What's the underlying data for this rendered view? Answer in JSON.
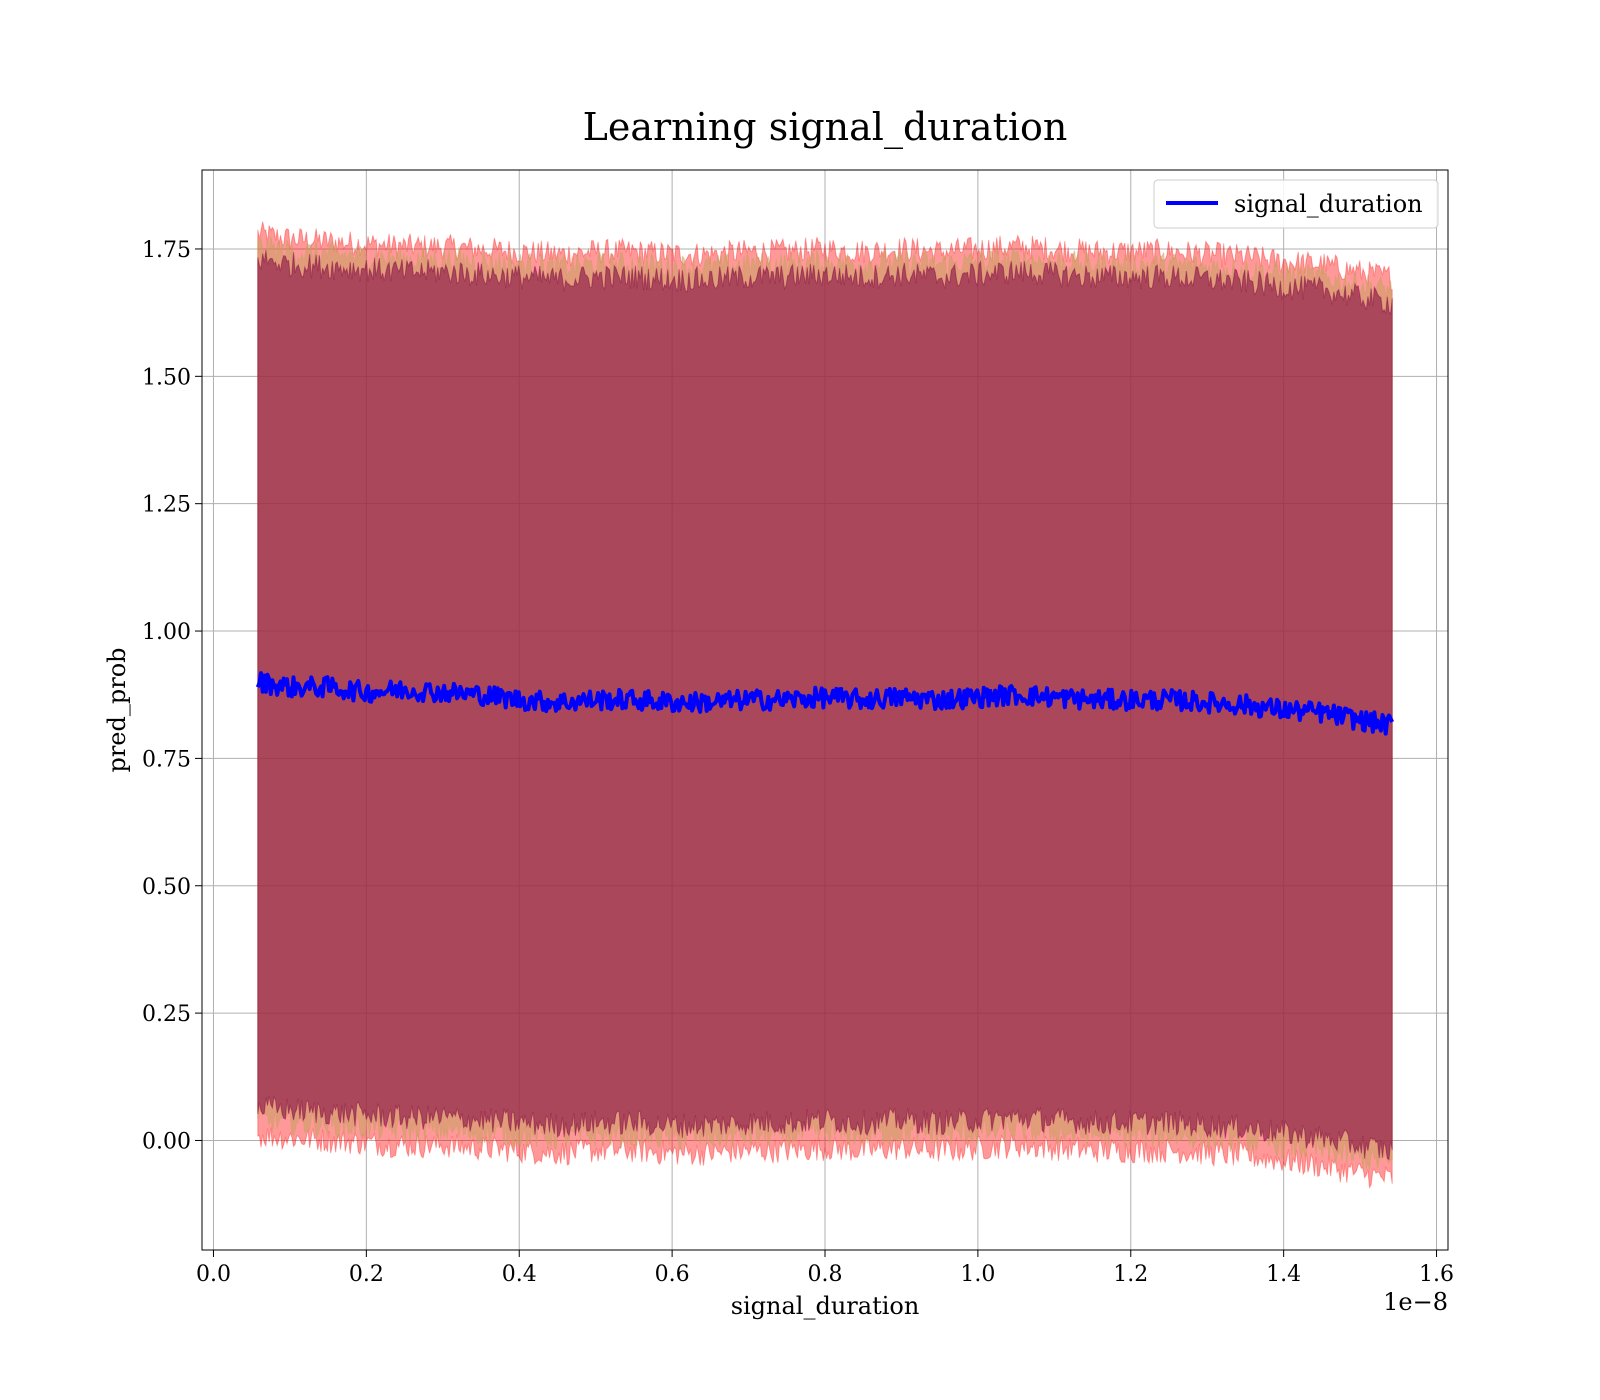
{
  "chart_data": {
    "type": "line",
    "title": "Learning signal_duration",
    "xlabel": "signal_duration",
    "ylabel": "pred_prob",
    "x_offset_text": "1e−8",
    "xlim": [
      -0.015,
      1.615
    ],
    "ylim": [
      -0.215,
      1.905
    ],
    "x_ticks": [
      0.0,
      0.2,
      0.4,
      0.6,
      0.8,
      1.0,
      1.2,
      1.4,
      1.6
    ],
    "x_tick_labels": [
      "0.0",
      "0.2",
      "0.4",
      "0.6",
      "0.8",
      "1.0",
      "1.2",
      "1.4",
      "1.6"
    ],
    "y_ticks": [
      0.0,
      0.25,
      0.5,
      0.75,
      1.0,
      1.25,
      1.5,
      1.75
    ],
    "y_tick_labels": [
      "0.00",
      "0.25",
      "0.50",
      "0.75",
      "1.00",
      "1.25",
      "1.50",
      "1.75"
    ],
    "grid": true,
    "legend": {
      "placement": "top-right",
      "entries": [
        "signal_duration"
      ]
    },
    "x_range": [
      0.058,
      1.542
    ],
    "series": [
      {
        "name": "signal_duration",
        "color": "#0000ff",
        "x": [
          0.06,
          0.1,
          0.15,
          0.2,
          0.25,
          0.3,
          0.35,
          0.4,
          0.45,
          0.5,
          0.55,
          0.6,
          0.65,
          0.7,
          0.75,
          0.8,
          0.85,
          0.9,
          0.95,
          1.0,
          1.05,
          1.1,
          1.15,
          1.2,
          1.25,
          1.3,
          1.35,
          1.4,
          1.45,
          1.5,
          1.54
        ],
        "y": [
          0.9,
          0.89,
          0.89,
          0.88,
          0.885,
          0.88,
          0.875,
          0.865,
          0.86,
          0.865,
          0.865,
          0.86,
          0.86,
          0.865,
          0.865,
          0.87,
          0.865,
          0.87,
          0.865,
          0.87,
          0.875,
          0.87,
          0.865,
          0.865,
          0.865,
          0.86,
          0.855,
          0.845,
          0.84,
          0.825,
          0.815
        ]
      }
    ],
    "bands": [
      {
        "color": "#ff0000",
        "opacity": 0.4,
        "upper": [
          1.78,
          1.77,
          1.765,
          1.76,
          1.755,
          1.755,
          1.75,
          1.745,
          1.74,
          1.745,
          1.745,
          1.74,
          1.74,
          1.745,
          1.745,
          1.75,
          1.745,
          1.75,
          1.745,
          1.75,
          1.755,
          1.75,
          1.745,
          1.745,
          1.745,
          1.74,
          1.735,
          1.725,
          1.72,
          1.705,
          1.695
        ],
        "lower": [
          0.01,
          0.005,
          0.0,
          -0.005,
          -0.01,
          -0.01,
          -0.015,
          -0.02,
          -0.025,
          -0.02,
          -0.02,
          -0.025,
          -0.025,
          -0.02,
          -0.02,
          -0.015,
          -0.02,
          -0.015,
          -0.02,
          -0.015,
          -0.01,
          -0.015,
          -0.02,
          -0.02,
          -0.02,
          -0.025,
          -0.03,
          -0.04,
          -0.05,
          -0.065,
          -0.075
        ]
      },
      {
        "color": "#c8a060",
        "opacity": 0.55,
        "upper": [
          1.755,
          1.745,
          1.74,
          1.735,
          1.73,
          1.73,
          1.725,
          1.72,
          1.715,
          1.72,
          1.72,
          1.715,
          1.715,
          1.72,
          1.72,
          1.725,
          1.72,
          1.725,
          1.72,
          1.725,
          1.73,
          1.725,
          1.72,
          1.72,
          1.72,
          1.715,
          1.71,
          1.7,
          1.695,
          1.68,
          1.67
        ],
        "lower": [
          0.04,
          0.035,
          0.03,
          0.025,
          0.02,
          0.02,
          0.015,
          0.01,
          0.005,
          0.01,
          0.01,
          0.005,
          0.005,
          0.01,
          0.01,
          0.015,
          0.01,
          0.015,
          0.01,
          0.015,
          0.02,
          0.015,
          0.01,
          0.01,
          0.01,
          0.005,
          0.0,
          -0.01,
          -0.02,
          -0.035,
          -0.045
        ]
      },
      {
        "color": "#800040",
        "opacity": 0.55,
        "upper": [
          1.73,
          1.72,
          1.715,
          1.71,
          1.705,
          1.705,
          1.7,
          1.695,
          1.69,
          1.695,
          1.695,
          1.69,
          1.69,
          1.695,
          1.695,
          1.7,
          1.695,
          1.7,
          1.695,
          1.7,
          1.705,
          1.7,
          1.695,
          1.695,
          1.695,
          1.69,
          1.685,
          1.675,
          1.67,
          1.655,
          1.645
        ],
        "lower": [
          0.065,
          0.06,
          0.055,
          0.05,
          0.045,
          0.045,
          0.04,
          0.035,
          0.03,
          0.035,
          0.035,
          0.03,
          0.03,
          0.035,
          0.035,
          0.04,
          0.035,
          0.04,
          0.035,
          0.04,
          0.045,
          0.04,
          0.035,
          0.035,
          0.035,
          0.03,
          0.025,
          0.015,
          0.005,
          -0.01,
          -0.02
        ]
      }
    ]
  }
}
